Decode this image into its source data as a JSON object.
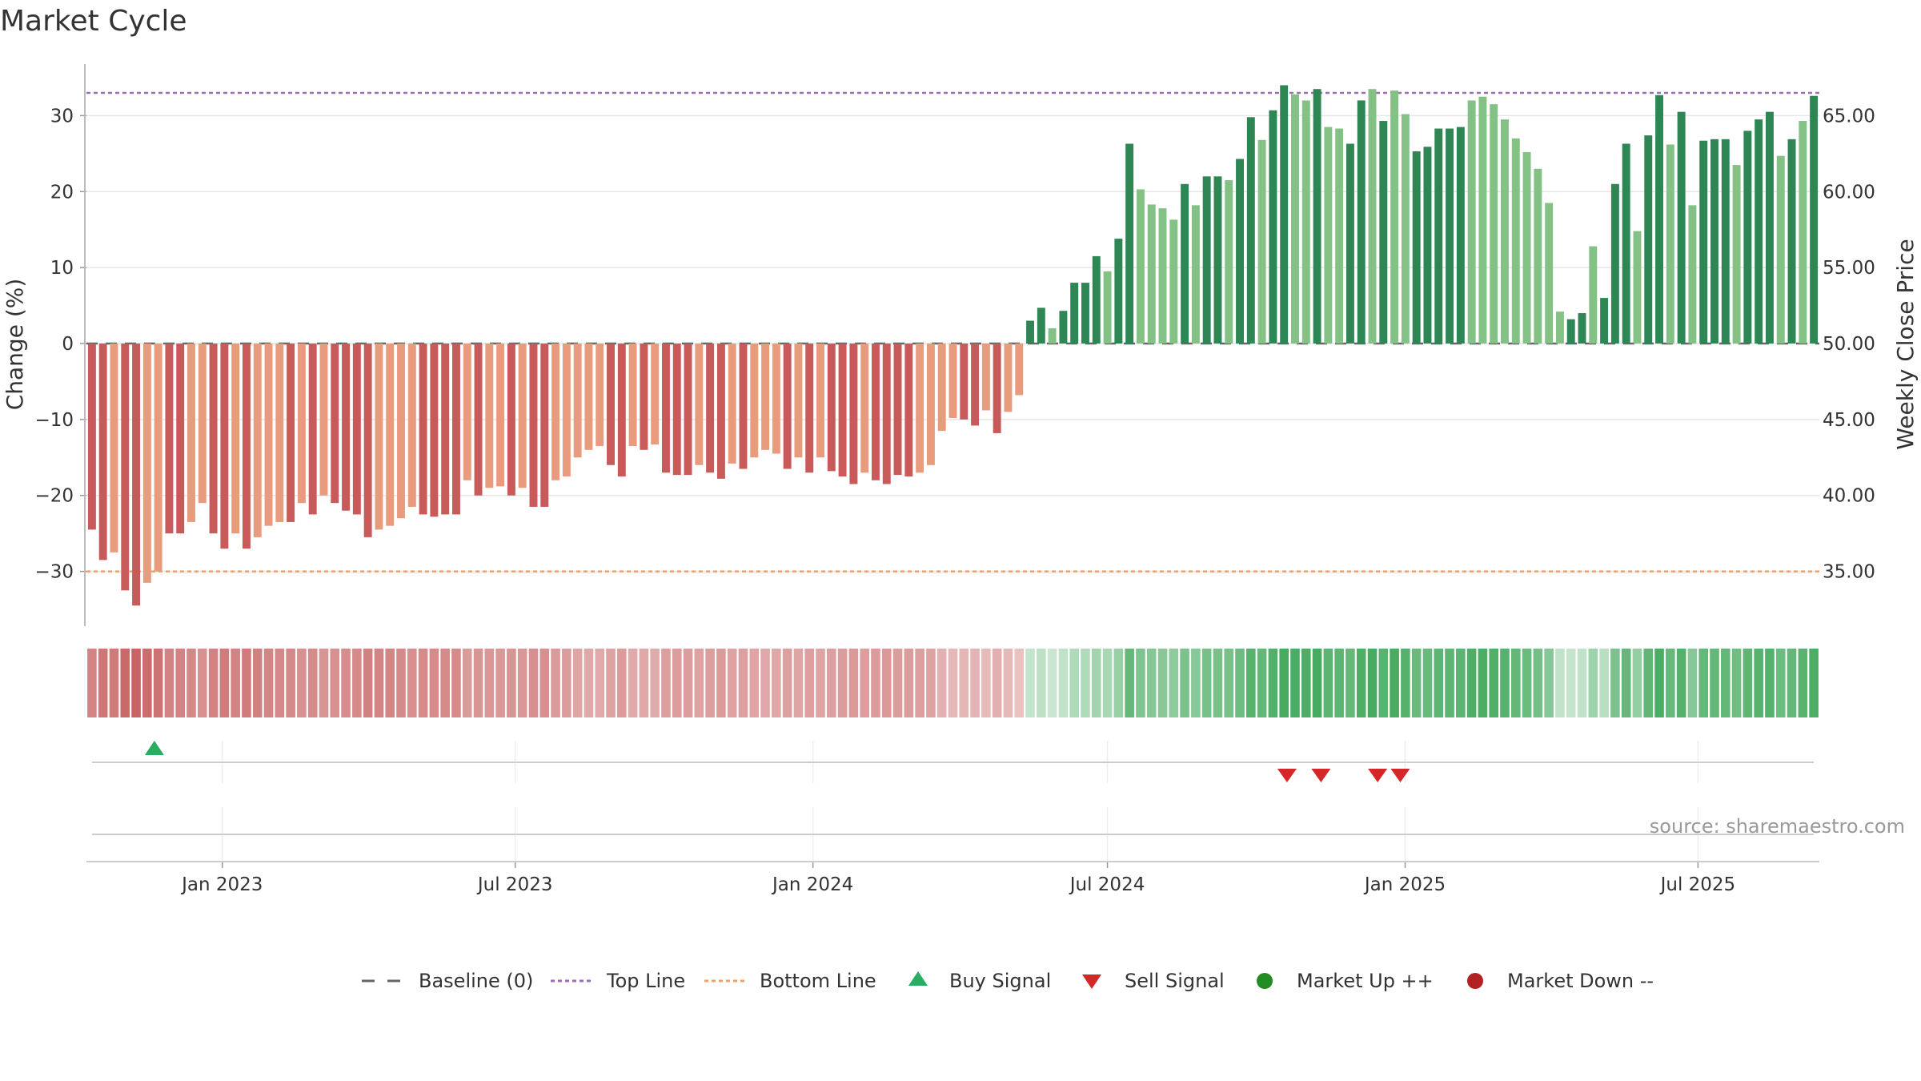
{
  "title": "Market Cycle",
  "source": "source: sharemaestro.com",
  "colors": {
    "bar_neg_dark": "#c85a5a",
    "bar_neg_light": "#e99b7d",
    "bar_pos_dark": "#2e8655",
    "bar_pos_light": "#84c185",
    "top_line": "#9a6fb5",
    "bottom_line": "#f0a06a",
    "buy": "#27ae60",
    "sell": "#d62728",
    "market_up": "#228b22",
    "market_down": "#b22222",
    "baseline": "#666666"
  },
  "legend": [
    {
      "label": "Baseline (0)",
      "icon": "dash-line-icon"
    },
    {
      "label": "Top Line",
      "icon": "dotted-purple-line-icon"
    },
    {
      "label": "Bottom Line",
      "icon": "dotted-orange-line-icon"
    },
    {
      "label": "Buy Signal",
      "icon": "up-triangle-icon"
    },
    {
      "label": "Sell Signal",
      "icon": "down-triangle-icon"
    },
    {
      "label": "Market Up ++",
      "icon": "green-circle-icon"
    },
    {
      "label": "Market Down --",
      "icon": "red-circle-icon"
    }
  ],
  "chart_data": {
    "type": "bar",
    "title": "Market Cycle",
    "xlabel": "",
    "ylabel": "Change (%)",
    "y2label": "Weekly Close Price",
    "ylim": [
      -37,
      37
    ],
    "yticks": [
      -30,
      -20,
      -10,
      0,
      10,
      20,
      30
    ],
    "ytick_labels": [
      "−30",
      "−20",
      "−10",
      "0",
      "10",
      "20",
      "30"
    ],
    "y2lim": [
      31.5,
      68.5
    ],
    "y2ticks": [
      35,
      40,
      45,
      50,
      55,
      60,
      65
    ],
    "y2tick_labels": [
      "35.00",
      "40.00",
      "45.00",
      "50.00",
      "55.00",
      "60.00",
      "65.00"
    ],
    "top_line": 33,
    "bottom_line": -30,
    "x_start": "2022-10-09",
    "x_end": "2025-09-14",
    "x_ticks": [
      {
        "date": "2023-01-01",
        "label": "Jan 2023"
      },
      {
        "date": "2023-07-01",
        "label": "Jul 2023"
      },
      {
        "date": "2024-01-01",
        "label": "Jan 2024"
      },
      {
        "date": "2024-07-01",
        "label": "Jul 2024"
      },
      {
        "date": "2025-01-01",
        "label": "Jan 2025"
      },
      {
        "date": "2025-07-01",
        "label": "Jul 2025"
      }
    ],
    "series": [
      {
        "values": [
          -24.5,
          -28.5,
          -27.5,
          -32.5,
          -34.5,
          -31.5,
          -30,
          -25,
          -25,
          -23.5,
          -21,
          -25,
          -27,
          -25,
          -27,
          -25.5,
          -24,
          -23.5,
          -23.5,
          -21,
          -22.5,
          -20,
          -21,
          -22,
          -22.5,
          -25.5,
          -24.5,
          -24,
          -23,
          -21.5,
          -22.5,
          -22.8,
          -22.5,
          -22.5,
          -18,
          -20,
          -19,
          -18.8,
          -20,
          -19,
          -21.5,
          -21.5,
          -18,
          -17.5,
          -15,
          -14,
          -13.5,
          -16,
          -17.5,
          -13.5,
          -14,
          -13.3,
          -17,
          -17.3,
          -17.3,
          -16,
          -17,
          -17.8,
          -15.8,
          -16.5,
          -15,
          -14,
          -14.5,
          -16.5,
          -15,
          -17,
          -15,
          -16.8,
          -17.5,
          -18.5,
          -17,
          -18,
          -18.5,
          -17.3,
          -17.5,
          -17,
          -16,
          -11.5,
          -9.8,
          -10,
          -10.8,
          -8.8,
          -11.8,
          -9,
          -6.8,
          3,
          4.7,
          2,
          4.3,
          8,
          8,
          11.5,
          9.5,
          13.8,
          26.3,
          20.3,
          18.3,
          17.8,
          16.3,
          21,
          18.2,
          22,
          22,
          21.5,
          24.3,
          29.8,
          26.8,
          30.7,
          34,
          32.8,
          32,
          33.5,
          28.5,
          28.3,
          26.3,
          32,
          33.5,
          29.3,
          33.3,
          30.2,
          25.3,
          25.9,
          28.3,
          28.3,
          28.5,
          32,
          32.5,
          31.5,
          29.5,
          27,
          25.2,
          23,
          18.5,
          4.2,
          3.2,
          4,
          12.8,
          6,
          21,
          26.3,
          14.8,
          27.4,
          32.7,
          26.2,
          30.5,
          18.2,
          26.7,
          26.9,
          26.9,
          23.5,
          28,
          29.5,
          30.5,
          24.7,
          26.9,
          29.3,
          32.6
        ],
        "shade": [
          "dark",
          "dark",
          "light",
          "dark",
          "dark",
          "light",
          "light",
          "dark",
          "dark",
          "light",
          "light",
          "dark",
          "dark",
          "light",
          "dark",
          "light",
          "light",
          "light",
          "dark",
          "light",
          "dark",
          "light",
          "dark",
          "dark",
          "dark",
          "dark",
          "light",
          "light",
          "light",
          "light",
          "dark",
          "dark",
          "dark",
          "dark",
          "light",
          "dark",
          "light",
          "light",
          "dark",
          "light",
          "dark",
          "dark",
          "light",
          "light",
          "light",
          "light",
          "light",
          "dark",
          "dark",
          "light",
          "dark",
          "light",
          "dark",
          "dark",
          "dark",
          "light",
          "dark",
          "dark",
          "light",
          "dark",
          "light",
          "light",
          "light",
          "dark",
          "light",
          "dark",
          "light",
          "dark",
          "dark",
          "dark",
          "light",
          "dark",
          "dark",
          "dark",
          "dark",
          "light",
          "light",
          "light",
          "light",
          "dark",
          "dark",
          "light",
          "dark",
          "light",
          "light",
          "dark",
          "dark",
          "light",
          "dark",
          "dark",
          "dark",
          "dark",
          "light",
          "dark",
          "dark",
          "light",
          "light",
          "light",
          "light",
          "dark",
          "light",
          "dark",
          "dark",
          "light",
          "dark",
          "dark",
          "light",
          "dark",
          "dark",
          "light",
          "light",
          "dark",
          "light",
          "light",
          "dark",
          "dark",
          "light",
          "dark",
          "light",
          "light",
          "dark",
          "dark",
          "dark",
          "dark",
          "dark",
          "light",
          "light",
          "light",
          "light",
          "light",
          "light",
          "light",
          "light",
          "light",
          "dark",
          "dark",
          "light",
          "dark",
          "dark",
          "dark",
          "light",
          "dark",
          "dark",
          "light",
          "dark",
          "light",
          "dark",
          "dark",
          "dark",
          "light",
          "dark",
          "dark",
          "dark",
          "light",
          "dark",
          "light",
          "dark"
        ]
      }
    ],
    "buy_signals": [
      "2022-11-20"
    ],
    "sell_signals": [
      "2024-10-20",
      "2024-11-10",
      "2024-12-15",
      "2024-12-29"
    ]
  }
}
